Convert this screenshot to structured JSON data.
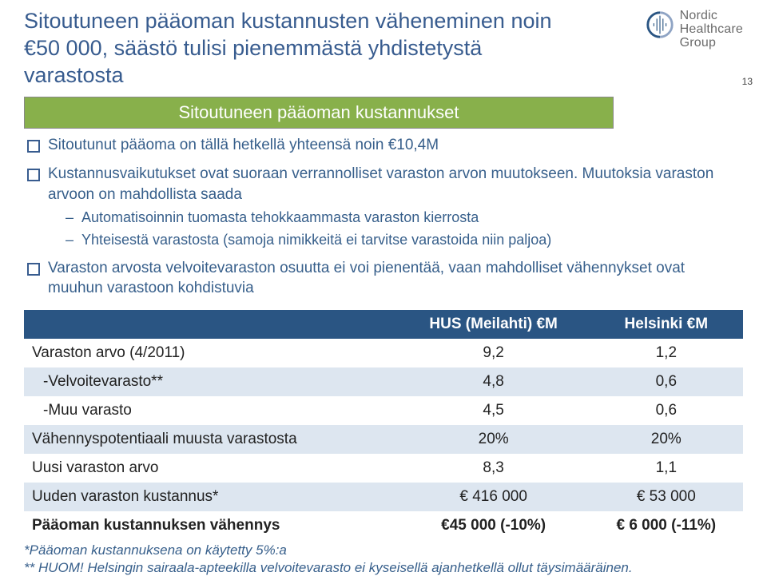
{
  "pageNumber": "13",
  "title": "Sitoutuneen pääoman kustannusten väheneminen noin €50 000, säästö tulisi pienemmästä yhdistetystä varastosta",
  "logo": {
    "line1": "Nordic",
    "line2": "Healthcare",
    "line3": "Group",
    "arc_color_left": "#2a5583",
    "arc_color_right": "#8fa4c4"
  },
  "subtitle_bar": "Sitoutuneen pääoman kustannukset",
  "bullets": [
    {
      "text": "Sitoutunut pääoma on tällä hetkellä yhteensä noin €10,4M"
    },
    {
      "text": "Kustannusvaikutukset ovat suoraan verrannolliset varaston arvon muutokseen. Muutoksia varaston arvoon on mahdollista saada",
      "sub": [
        "Automatisoinnin tuomasta tehokkaammasta varaston kierrosta",
        "Yhteisestä varastosta (samoja nimikkeitä ei tarvitse varastoida niin paljoa)"
      ]
    },
    {
      "text": "Varaston arvosta velvoitevaraston osuutta ei voi pienentää, vaan mahdolliset vähennykset ovat muuhun varastoon kohdistuvia"
    }
  ],
  "table": {
    "headers": [
      "",
      "HUS (Meilahti) €M",
      "Helsinki €M"
    ],
    "rows": [
      {
        "label": "Varaston arvo (4/2011)",
        "c1": "9,2",
        "c2": "1,2",
        "indent": 0,
        "bold": false
      },
      {
        "label": "-Velvoitevarasto**",
        "c1": "4,8",
        "c2": "0,6",
        "indent": 1,
        "bold": false
      },
      {
        "label": "-Muu varasto",
        "c1": "4,5",
        "c2": "0,6",
        "indent": 1,
        "bold": false
      },
      {
        "label": "Vähennyspotentiaali muusta varastosta",
        "c1": "20%",
        "c2": "20%",
        "indent": 0,
        "bold": false
      },
      {
        "label": "Uusi varaston arvo",
        "c1": "8,3",
        "c2": "1,1",
        "indent": 0,
        "bold": false
      },
      {
        "label": "Uuden varaston kustannus*",
        "c1": "€ 416 000",
        "c2": "€ 53 000",
        "indent": 0,
        "bold": false
      },
      {
        "label": "Pääoman kustannuksen vähennys",
        "c1": "€45 000 (-10%)",
        "c2": "€ 6 000 (-11%)",
        "indent": 0,
        "bold": true
      }
    ],
    "header_bg": "#2a5583",
    "stripe_bg": "#dde6f0"
  },
  "footnotes": [
    "*Pääoman kustannuksena on käytetty 5%:a",
    "** HUOM! Helsingin sairaala-apteekilla velvoitevarasto ei kyseisellä ajanhetkellä ollut täysimääräinen."
  ]
}
